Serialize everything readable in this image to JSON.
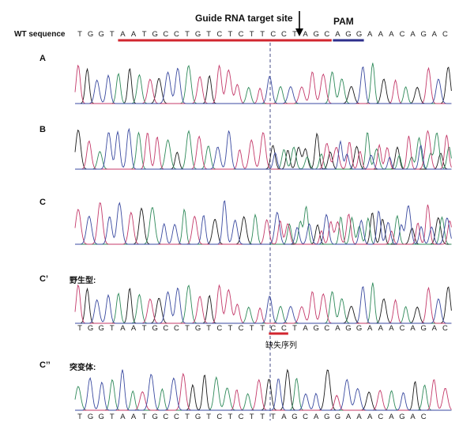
{
  "header": {
    "title": "Guide RNA target site",
    "pam_label": "PAM",
    "wt_label": "WT sequence"
  },
  "sequences": {
    "wt": "TGGTAATGCCTGTCTCTTCCTAGCAGGAAACAGAC",
    "c_prime": "TGGTAATGCCTGTCTCTTCCTAGCAGGAAACAGAC",
    "c_double_prime": "TGGTAATGCCTGTCTCTTTAGCAGGAAACAGAC"
  },
  "panels": [
    {
      "id": "A",
      "label": "A",
      "caption": ""
    },
    {
      "id": "B",
      "label": "B",
      "caption": ""
    },
    {
      "id": "C",
      "label": "C",
      "caption": ""
    },
    {
      "id": "Cp",
      "label": "C’",
      "caption": "野生型:"
    },
    {
      "id": "Cpp",
      "label": "C’’",
      "caption": "突变体:"
    }
  ],
  "deletion_label": "缺失序列",
  "colors": {
    "guide_bar": "#d1262f",
    "pam_bar": "#2e2f8c",
    "deletion_bar": "#d1262f",
    "trace_black": "#1a1a1a",
    "trace_green": "#2f8a5a",
    "trace_red": "#c43a6a",
    "trace_blue": "#3a4aa0",
    "cut_line": "#333a7a"
  }
}
